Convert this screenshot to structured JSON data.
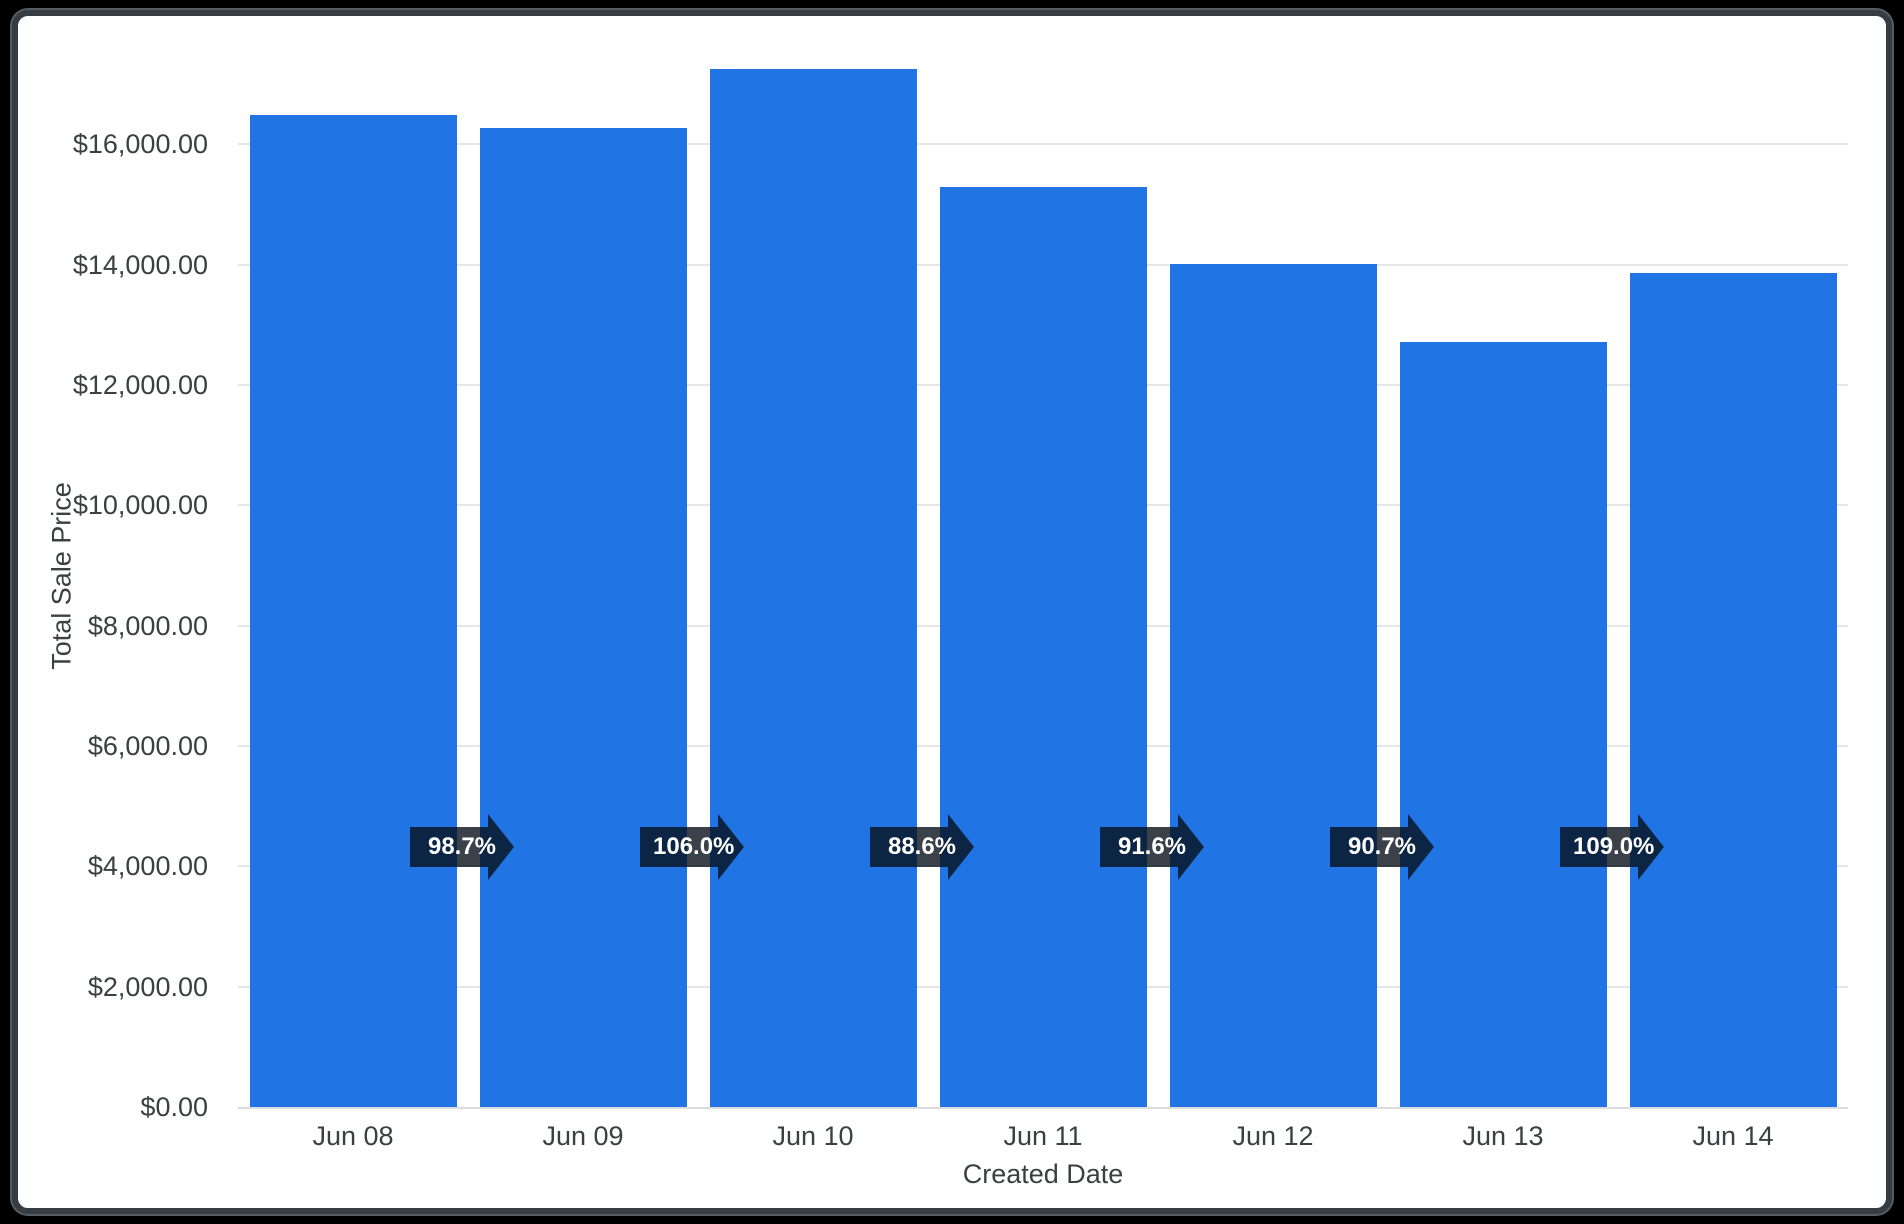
{
  "frame": {
    "page_background": "#000000",
    "card_background": "#ffffff",
    "card_border_color": "#363d42"
  },
  "chart_data": {
    "type": "bar",
    "title": "",
    "xlabel": "Created Date",
    "ylabel": "Total Sale Price",
    "categories": [
      "Jun 08",
      "Jun 09",
      "Jun 10",
      "Jun 11",
      "Jun 12",
      "Jun 13",
      "Jun 14"
    ],
    "values": [
      16480,
      16270,
      17250,
      15290,
      14010,
      12720,
      13860
    ],
    "bar_color": "#2074e4",
    "ylim": [
      0,
      17650
    ],
    "ytick_interval": 2000,
    "yticks": [
      {
        "value": 0,
        "label": "$0.00"
      },
      {
        "value": 2000,
        "label": "$2,000.00"
      },
      {
        "value": 4000,
        "label": "$4,000.00"
      },
      {
        "value": 6000,
        "label": "$6,000.00"
      },
      {
        "value": 8000,
        "label": "$8,000.00"
      },
      {
        "value": 10000,
        "label": "$10,000.00"
      },
      {
        "value": 12000,
        "label": "$12,000.00"
      },
      {
        "value": 14000,
        "label": "$14,000.00"
      },
      {
        "value": 16000,
        "label": "$16,000.00"
      }
    ],
    "grid": true,
    "legend": "none",
    "text_color": "#3c4043",
    "gridline_color": "#e6e6e6",
    "axisline_color": "#dadce0",
    "annotations": {
      "type": "percent-change-arrows",
      "labels": [
        "98.7%",
        "106.0%",
        "88.6%",
        "91.6%",
        "90.7%",
        "109.0%"
      ],
      "arrow_color": "rgba(9,17,27,0.80)",
      "label_text_color": "#ffffff"
    }
  }
}
